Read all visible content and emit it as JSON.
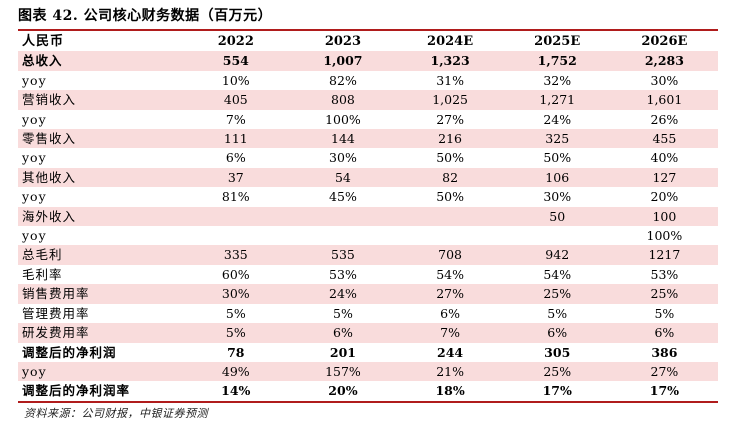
{
  "title": "图表 42. 公司核心财务数据（百万元）",
  "source": "资料来源：公司财报，中银证券预测",
  "header": [
    "人民币",
    "2022",
    "2023",
    "2024E",
    "2025E",
    "2026E"
  ],
  "rows": [
    {
      "label": "总收入",
      "values": [
        "554",
        "1,007",
        "1,323",
        "1,752",
        "2,283"
      ],
      "shade": true,
      "bold": true
    },
    {
      "label": "yoy",
      "values": [
        "10%",
        "82%",
        "31%",
        "32%",
        "30%"
      ],
      "shade": false,
      "bold": false
    },
    {
      "label": "营销收入",
      "values": [
        "405",
        "808",
        "1,025",
        "1,271",
        "1,601"
      ],
      "shade": true,
      "bold": false
    },
    {
      "label": "yoy",
      "values": [
        "7%",
        "100%",
        "27%",
        "24%",
        "26%"
      ],
      "shade": false,
      "bold": false
    },
    {
      "label": "零售收入",
      "values": [
        "111",
        "144",
        "216",
        "325",
        "455"
      ],
      "shade": true,
      "bold": false
    },
    {
      "label": "yoy",
      "values": [
        "6%",
        "30%",
        "50%",
        "50%",
        "40%"
      ],
      "shade": false,
      "bold": false
    },
    {
      "label": "其他收入",
      "values": [
        "37",
        "54",
        "82",
        "106",
        "127"
      ],
      "shade": true,
      "bold": false
    },
    {
      "label": "yoy",
      "values": [
        "81%",
        "45%",
        "50%",
        "30%",
        "20%"
      ],
      "shade": false,
      "bold": false
    },
    {
      "label": "海外收入",
      "values": [
        "",
        "",
        "",
        "50",
        "100"
      ],
      "shade": true,
      "bold": false
    },
    {
      "label": "yoy",
      "values": [
        "",
        "",
        "",
        "",
        "100%"
      ],
      "shade": false,
      "bold": false
    },
    {
      "label": "总毛利",
      "values": [
        "335",
        "535",
        "708",
        "942",
        "1217"
      ],
      "shade": true,
      "bold": false
    },
    {
      "label": "毛利率",
      "values": [
        "60%",
        "53%",
        "54%",
        "54%",
        "53%"
      ],
      "shade": false,
      "bold": false
    },
    {
      "label": "销售费用率",
      "values": [
        "30%",
        "24%",
        "27%",
        "25%",
        "25%"
      ],
      "shade": true,
      "bold": false
    },
    {
      "label": "管理费用率",
      "values": [
        "5%",
        "5%",
        "6%",
        "5%",
        "5%"
      ],
      "shade": false,
      "bold": false
    },
    {
      "label": "研发费用率",
      "values": [
        "5%",
        "6%",
        "7%",
        "6%",
        "6%"
      ],
      "shade": true,
      "bold": false
    },
    {
      "label": "调整后的净利润",
      "values": [
        "78",
        "201",
        "244",
        "305",
        "386"
      ],
      "shade": false,
      "bold": true
    },
    {
      "label": "yoy",
      "values": [
        "49%",
        "157%",
        "21%",
        "25%",
        "27%"
      ],
      "shade": true,
      "bold": false
    },
    {
      "label": "调整后的净利润率",
      "values": [
        "14%",
        "20%",
        "18%",
        "17%",
        "17%"
      ],
      "shade": false,
      "bold": true
    }
  ]
}
